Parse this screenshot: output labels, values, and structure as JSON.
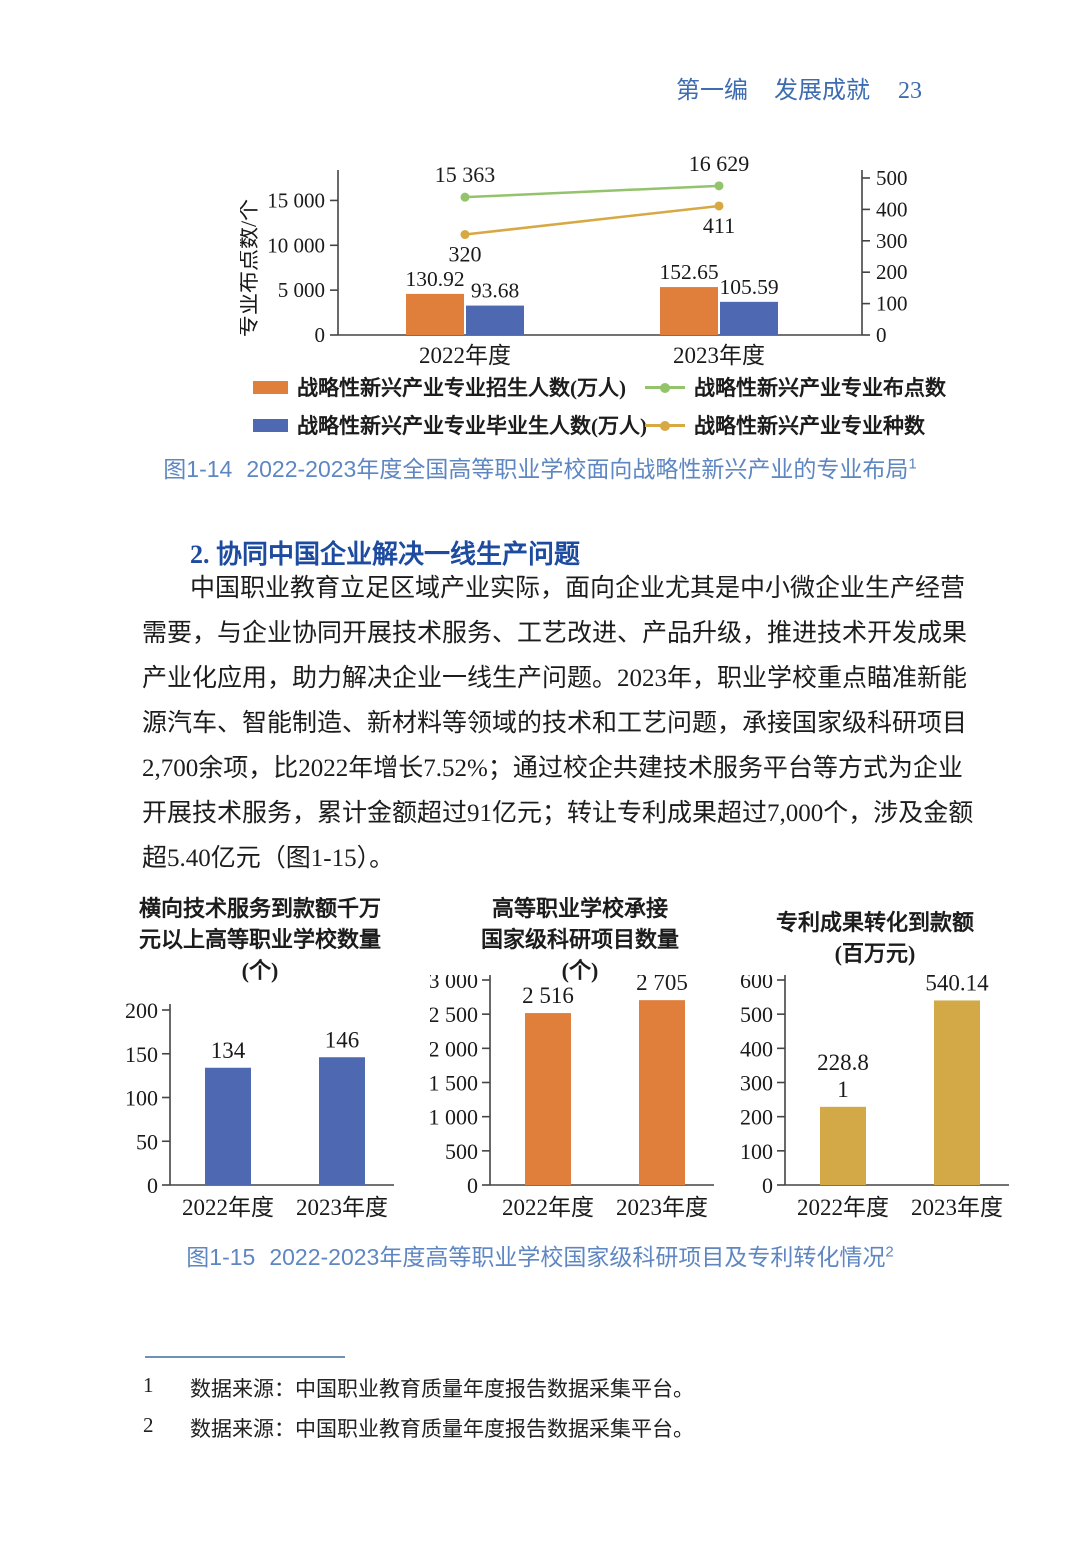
{
  "header": {
    "part": "第一编",
    "section": "发展成就",
    "page_no": "23"
  },
  "figure14": {
    "label": "图1-14",
    "text": "2022-2023年度全国高等职业学校面向战略性新兴产业的专业布局",
    "sup": "1"
  },
  "figure15": {
    "label": "图1-15",
    "text": "2022-2023年度高等职业学校国家级科研项目及专利转化情况",
    "sup": "2"
  },
  "section": {
    "heading": "2. 协同中国企业解决一线生产问题",
    "paragraph_lines": [
      "中国职业教育立足区域产业实际，面向企业尤其是中小微企业生产经营",
      "需要，与企业协同开展技术服务、工艺改进、产品升级，推进技术开发成果",
      "产业化应用，助力解决企业一线生产问题。2023年，职业学校重点瞄准新能",
      "源汽车、智能制造、新材料等领域的技术和工艺问题，承接国家级科研项目",
      "2,700余项，比2022年增长7.52%；通过校企共建技术服务平台等方式为企业",
      "开展技术服务，累计金额超过91亿元；转让专利成果超过7,000个，涉及金额",
      "超5.40亿元（图1-15）。"
    ]
  },
  "footnotes": [
    {
      "num": "1",
      "text": "数据来源：中国职业教育质量年度报告数据采集平台。"
    },
    {
      "num": "2",
      "text": "数据来源：中国职业教育质量年度报告数据采集平台。"
    }
  ],
  "colors": {
    "enroll_bar": "#E07E3C",
    "graduate_bar": "#4E68B1",
    "sites_line": "#93C36B",
    "kinds_line": "#D8A843",
    "patent_bar": "#D2A946",
    "caption_blue": "#5E86C2",
    "heading_blue": "#1C4BA0",
    "header_blue": "#3E6CB0",
    "footnote_rule": "#6F92B4"
  },
  "chart_data": [
    {
      "type": "bar+line",
      "title": "图1-14 2022-2023年度全国高等职业学校面向战略性新兴产业的专业布局",
      "categories": [
        "2022年度",
        "2023年度"
      ],
      "legend_position": "bottom",
      "series": [
        {
          "name": "战略性新兴产业专业招生人数(万人)",
          "kind": "bar",
          "axis": "right",
          "color": "#E07E3C",
          "values": [
            130.92,
            152.65
          ],
          "labels": [
            "130.92",
            "152.65"
          ]
        },
        {
          "name": "战略性新兴产业专业毕业生人数(万人)",
          "kind": "bar",
          "axis": "right",
          "color": "#4E68B1",
          "values": [
            93.68,
            105.59
          ],
          "labels": [
            "93.68",
            "105.59"
          ]
        },
        {
          "name": "战略性新兴产业专业布点数",
          "kind": "line",
          "axis": "left",
          "color": "#93C36B",
          "values": [
            15363,
            16629
          ],
          "labels": [
            "15 363",
            "16 629"
          ],
          "label_side": "above"
        },
        {
          "name": "战略性新兴产业专业种数",
          "kind": "line",
          "axis": "right",
          "color": "#D8A843",
          "values": [
            320,
            411
          ],
          "labels": [
            "320",
            "411"
          ],
          "label_side": "below"
        }
      ],
      "left_axis": {
        "label": "专业布点数/个",
        "ylim": [
          0,
          17500
        ],
        "tick_values": [
          0,
          5000,
          10000,
          15000
        ],
        "tick_labels": [
          "0",
          "5 000",
          "10 000",
          "15 000"
        ]
      },
      "right_axis": {
        "ylim": [
          0,
          500
        ],
        "tick_values": [
          0,
          100,
          200,
          300,
          400,
          500
        ],
        "tick_labels": [
          "0",
          "100",
          "200",
          "300",
          "400",
          "500"
        ]
      }
    },
    {
      "type": "bar",
      "title_lines": [
        "横向技术服务到款额千万",
        "元以上高等职业学校数量",
        "(个)"
      ],
      "categories": [
        "2022年度",
        "2023年度"
      ],
      "values": [
        134,
        146
      ],
      "bar_labels": [
        [
          "134"
        ],
        [
          "146"
        ]
      ],
      "color": "#4E68B1",
      "ylim": [
        0,
        200
      ],
      "tick_values": [
        0,
        50,
        100,
        150,
        200
      ],
      "tick_labels": [
        "0",
        "50",
        "100",
        "150",
        "200"
      ]
    },
    {
      "type": "bar",
      "title_lines": [
        "高等职业学校承接",
        "国家级科研项目数量",
        "(个)"
      ],
      "categories": [
        "2022年度",
        "2023年度"
      ],
      "values": [
        2516,
        2705
      ],
      "bar_labels": [
        [
          "2 516"
        ],
        [
          "2 705"
        ]
      ],
      "color": "#E07E3C",
      "ylim": [
        0,
        3000
      ],
      "tick_values": [
        0,
        500,
        1000,
        1500,
        2000,
        2500,
        3000
      ],
      "tick_labels": [
        "0",
        "500",
        "1 000",
        "1 500",
        "2 000",
        "2 500",
        "3 000"
      ]
    },
    {
      "type": "bar",
      "title_lines": [
        "专利成果转化到款额",
        "(百万元)"
      ],
      "categories": [
        "2022年度",
        "2023年度"
      ],
      "values": [
        228.81,
        540.14
      ],
      "bar_labels": [
        [
          "228.8",
          "1"
        ],
        [
          "540.14"
        ]
      ],
      "color": "#D2A946",
      "ylim": [
        0,
        600
      ],
      "tick_values": [
        0,
        100,
        200,
        300,
        400,
        500,
        600
      ],
      "tick_labels": [
        "0",
        "100",
        "200",
        "300",
        "400",
        "500",
        "600"
      ]
    }
  ]
}
